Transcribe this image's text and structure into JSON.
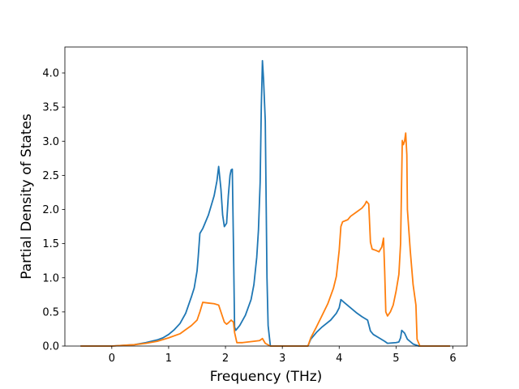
{
  "chart_data": {
    "type": "line",
    "title": "",
    "xlabel": "Frequency (THz)",
    "ylabel": "Partial Density of States",
    "xlim": [
      -0.825,
      6.25
    ],
    "ylim": [
      0.0,
      4.38
    ],
    "xticks": [
      0,
      1,
      2,
      3,
      4,
      5,
      6
    ],
    "yticks": [
      0.0,
      0.5,
      1.0,
      1.5,
      2.0,
      2.5,
      3.0,
      3.5,
      4.0
    ],
    "xtick_labels": [
      "0",
      "1",
      "2",
      "3",
      "4",
      "5",
      "6"
    ],
    "ytick_labels": [
      "0.0",
      "0.5",
      "1.0",
      "1.5",
      "2.0",
      "2.5",
      "3.0",
      "3.5",
      "4.0"
    ],
    "grid": false,
    "legend": "none",
    "series": [
      {
        "color": "#1f77b4",
        "points": [
          [
            -0.55,
            0.0
          ],
          [
            0.0,
            0.0
          ],
          [
            0.2,
            0.01
          ],
          [
            0.4,
            0.02
          ],
          [
            0.6,
            0.05
          ],
          [
            0.8,
            0.09
          ],
          [
            0.9,
            0.12
          ],
          [
            1.0,
            0.17
          ],
          [
            1.1,
            0.24
          ],
          [
            1.2,
            0.33
          ],
          [
            1.3,
            0.48
          ],
          [
            1.4,
            0.72
          ],
          [
            1.45,
            0.85
          ],
          [
            1.5,
            1.1
          ],
          [
            1.52,
            1.3
          ],
          [
            1.55,
            1.65
          ],
          [
            1.6,
            1.72
          ],
          [
            1.7,
            1.92
          ],
          [
            1.8,
            2.2
          ],
          [
            1.85,
            2.42
          ],
          [
            1.88,
            2.63
          ],
          [
            1.92,
            2.3
          ],
          [
            1.95,
            1.92
          ],
          [
            1.98,
            1.75
          ],
          [
            2.02,
            1.8
          ],
          [
            2.05,
            2.2
          ],
          [
            2.08,
            2.5
          ],
          [
            2.1,
            2.58
          ],
          [
            2.12,
            2.59
          ],
          [
            2.14,
            1.5
          ],
          [
            2.16,
            0.28
          ],
          [
            2.18,
            0.23
          ],
          [
            2.25,
            0.3
          ],
          [
            2.35,
            0.45
          ],
          [
            2.45,
            0.68
          ],
          [
            2.5,
            0.9
          ],
          [
            2.55,
            1.3
          ],
          [
            2.58,
            1.7
          ],
          [
            2.61,
            2.4
          ],
          [
            2.63,
            3.5
          ],
          [
            2.65,
            4.18
          ],
          [
            2.67,
            3.9
          ],
          [
            2.7,
            3.3
          ],
          [
            2.73,
            1.0
          ],
          [
            2.75,
            0.3
          ],
          [
            2.79,
            0.0
          ],
          [
            3.45,
            0.0
          ],
          [
            3.5,
            0.1
          ],
          [
            3.6,
            0.2
          ],
          [
            3.7,
            0.28
          ],
          [
            3.85,
            0.38
          ],
          [
            3.95,
            0.48
          ],
          [
            4.0,
            0.56
          ],
          [
            4.03,
            0.68
          ],
          [
            4.1,
            0.63
          ],
          [
            4.2,
            0.56
          ],
          [
            4.3,
            0.49
          ],
          [
            4.4,
            0.43
          ],
          [
            4.5,
            0.38
          ],
          [
            4.55,
            0.22
          ],
          [
            4.6,
            0.17
          ],
          [
            4.7,
            0.12
          ],
          [
            4.8,
            0.07
          ],
          [
            4.85,
            0.04
          ],
          [
            5.0,
            0.05
          ],
          [
            5.05,
            0.06
          ],
          [
            5.08,
            0.12
          ],
          [
            5.1,
            0.23
          ],
          [
            5.15,
            0.19
          ],
          [
            5.2,
            0.1
          ],
          [
            5.3,
            0.03
          ],
          [
            5.4,
            0.0
          ],
          [
            5.95,
            0.0
          ]
        ]
      },
      {
        "color": "#ff7f0e",
        "points": [
          [
            -0.55,
            0.0
          ],
          [
            0.0,
            0.0
          ],
          [
            0.2,
            0.01
          ],
          [
            0.4,
            0.02
          ],
          [
            0.6,
            0.04
          ],
          [
            0.8,
            0.07
          ],
          [
            1.0,
            0.12
          ],
          [
            1.2,
            0.18
          ],
          [
            1.3,
            0.24
          ],
          [
            1.4,
            0.3
          ],
          [
            1.5,
            0.38
          ],
          [
            1.55,
            0.5
          ],
          [
            1.6,
            0.64
          ],
          [
            1.7,
            0.63
          ],
          [
            1.8,
            0.62
          ],
          [
            1.88,
            0.6
          ],
          [
            1.92,
            0.5
          ],
          [
            1.98,
            0.35
          ],
          [
            2.02,
            0.32
          ],
          [
            2.05,
            0.34
          ],
          [
            2.1,
            0.38
          ],
          [
            2.14,
            0.35
          ],
          [
            2.16,
            0.2
          ],
          [
            2.2,
            0.05
          ],
          [
            2.3,
            0.05
          ],
          [
            2.5,
            0.07
          ],
          [
            2.6,
            0.08
          ],
          [
            2.65,
            0.11
          ],
          [
            2.7,
            0.04
          ],
          [
            2.79,
            0.0
          ],
          [
            3.45,
            0.0
          ],
          [
            3.5,
            0.12
          ],
          [
            3.6,
            0.28
          ],
          [
            3.7,
            0.45
          ],
          [
            3.8,
            0.62
          ],
          [
            3.9,
            0.85
          ],
          [
            3.95,
            1.02
          ],
          [
            4.0,
            1.4
          ],
          [
            4.03,
            1.75
          ],
          [
            4.06,
            1.82
          ],
          [
            4.15,
            1.85
          ],
          [
            4.2,
            1.9
          ],
          [
            4.3,
            1.96
          ],
          [
            4.4,
            2.02
          ],
          [
            4.45,
            2.07
          ],
          [
            4.48,
            2.12
          ],
          [
            4.52,
            2.08
          ],
          [
            4.55,
            1.52
          ],
          [
            4.58,
            1.42
          ],
          [
            4.65,
            1.4
          ],
          [
            4.7,
            1.38
          ],
          [
            4.75,
            1.45
          ],
          [
            4.78,
            1.58
          ],
          [
            4.8,
            1.1
          ],
          [
            4.82,
            0.5
          ],
          [
            4.85,
            0.44
          ],
          [
            4.9,
            0.5
          ],
          [
            4.95,
            0.6
          ],
          [
            5.0,
            0.8
          ],
          [
            5.05,
            1.05
          ],
          [
            5.08,
            1.5
          ],
          [
            5.11,
            3.01
          ],
          [
            5.13,
            2.95
          ],
          [
            5.15,
            3.0
          ],
          [
            5.17,
            3.12
          ],
          [
            5.19,
            2.8
          ],
          [
            5.2,
            2.0
          ],
          [
            5.25,
            1.4
          ],
          [
            5.3,
            0.9
          ],
          [
            5.35,
            0.6
          ],
          [
            5.37,
            0.1
          ],
          [
            5.42,
            0.0
          ],
          [
            5.95,
            0.0
          ]
        ]
      }
    ]
  }
}
